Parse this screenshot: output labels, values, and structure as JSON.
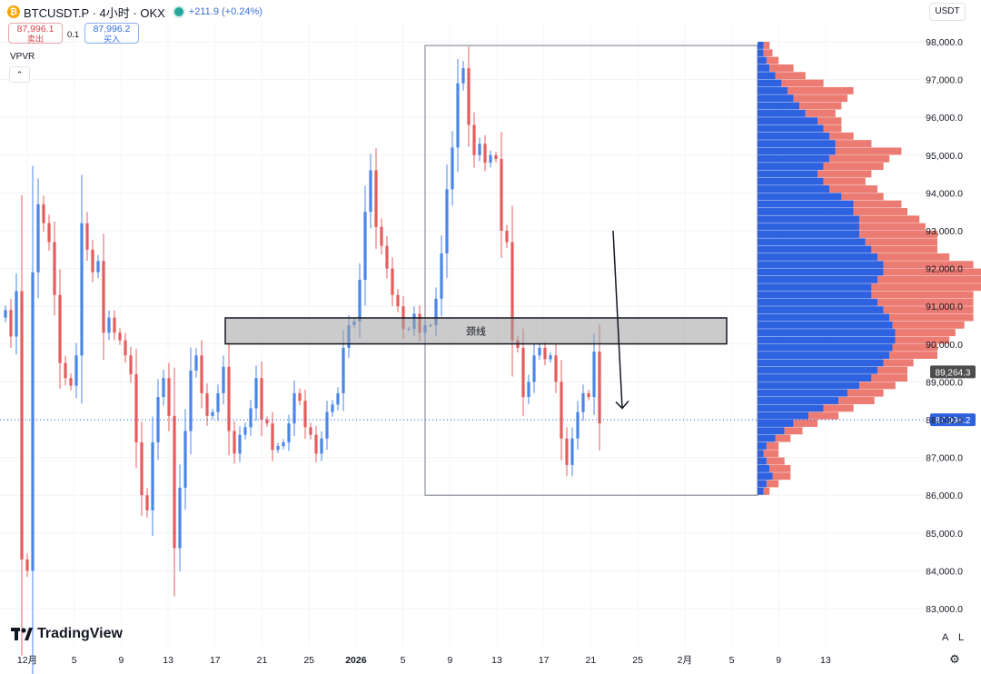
{
  "header": {
    "coin_glyph": "₿",
    "title": "BTCUSDT.P · 4小时 · OKX",
    "change": "+211.9 (+0.24%)",
    "status_color": "#26a69a"
  },
  "trade": {
    "sell_price": "87,996.1",
    "sell_label": "卖出",
    "qty": "0.1",
    "buy_price": "87,996.2",
    "buy_label": "买入"
  },
  "indicator": {
    "name": "VPVR",
    "collapse_glyph": "⌃"
  },
  "currency": "USDT",
  "branding": {
    "name": "TradingView"
  },
  "scale_buttons": {
    "auto": "A",
    "log": "L"
  },
  "colors": {
    "up": "#4a86e8",
    "down": "#e55c5c",
    "vp_up": "#2f62e0",
    "vp_down": "#ec7b73",
    "price_tag": "#2f62e0",
    "tag_grey": "#4d4d4d"
  },
  "chart_data": {
    "type": "candlestick",
    "timeframe": "4h",
    "ylim": [
      82500,
      98800
    ],
    "y_ticks": [
      98000,
      97000,
      96000,
      95000,
      94000,
      93000,
      92000,
      91000,
      90000,
      89000,
      88000,
      87000,
      86000,
      85000,
      84000,
      83000
    ],
    "y_tick_labels": [
      "98,000.0",
      "97,000.0",
      "96,000.0",
      "95,000.0",
      "94,000.0",
      "93,000.0",
      "92,000.0",
      "91,000.0",
      "90,000.0",
      "89,000.0",
      "88,000.0",
      "87,000.0",
      "86,000.0",
      "85,000.0",
      "84,000.0",
      "83,000.0"
    ],
    "x_ticks": [
      {
        "label": "12月",
        "bold": false
      },
      {
        "label": "5",
        "bold": false
      },
      {
        "label": "9",
        "bold": false
      },
      {
        "label": "13",
        "bold": false
      },
      {
        "label": "17",
        "bold": false
      },
      {
        "label": "21",
        "bold": false
      },
      {
        "label": "25",
        "bold": false
      },
      {
        "label": "2026",
        "bold": true
      },
      {
        "label": "5",
        "bold": false
      },
      {
        "label": "9",
        "bold": false
      },
      {
        "label": "13",
        "bold": false
      },
      {
        "label": "17",
        "bold": false
      },
      {
        "label": "21",
        "bold": false
      },
      {
        "label": "25",
        "bold": false
      },
      {
        "label": "2月",
        "bold": false
      },
      {
        "label": "5",
        "bold": false
      },
      {
        "label": "9",
        "bold": false
      },
      {
        "label": "13",
        "bold": false
      }
    ],
    "last_price": 87996.2,
    "last_price_label": "87,996.2",
    "marker_price": 89264.3,
    "marker_price_label": "89,264.3",
    "closes": [
      90900,
      90200,
      91400,
      84300,
      84000,
      91900,
      93700,
      93200,
      92700,
      91300,
      89500,
      89100,
      88900,
      89700,
      93200,
      92500,
      91900,
      92200,
      90300,
      90700,
      90300,
      90100,
      89700,
      89200,
      87400,
      86000,
      85600,
      87400,
      88600,
      89100,
      88100,
      84600,
      86200,
      87700,
      89300,
      89700,
      88700,
      88100,
      88200,
      88700,
      89400,
      87700,
      87100,
      87600,
      87800,
      88300,
      89100,
      88000,
      87900,
      87200,
      87300,
      87400,
      87900,
      88700,
      88500,
      87800,
      87600,
      87100,
      87500,
      88200,
      88400,
      88700,
      89900,
      90500,
      90600,
      91700,
      93500,
      94600,
      93100,
      92600,
      92000,
      91300,
      91000,
      90400,
      90400,
      90800,
      90300,
      90500,
      90500,
      91200,
      92400,
      94100,
      95200,
      96900,
      97300,
      95800,
      95000,
      95300,
      94800,
      95000,
      94900,
      93000,
      92700,
      90100,
      89900,
      88600,
      89000,
      89700,
      89900,
      89600,
      89700,
      89000,
      87500,
      86800,
      87500,
      88200,
      88700,
      88600,
      89800,
      87900
    ],
    "neckline": {
      "label": "颈线",
      "price_low": 90150,
      "price_high": 90500,
      "x_start_bar": 38,
      "x_end_bar": 131
    },
    "range_box": {
      "price_high": 97900,
      "price_low": 86000,
      "x_start_bar": 77,
      "x_end_bar": 138
    },
    "arrow": {
      "from_price": 93000,
      "to_price": 88300
    },
    "volume_profile": {
      "price_start": 86000,
      "bin_size": 200,
      "up": [
        2,
        3,
        5,
        4,
        3,
        2,
        3,
        6,
        9,
        12,
        17,
        22,
        27,
        30,
        34,
        38,
        40,
        42,
        44,
        45,
        46,
        46,
        45,
        44,
        42,
        40,
        38,
        38,
        40,
        42,
        42,
        40,
        38,
        36,
        34,
        34,
        34,
        32,
        32,
        28,
        24,
        22,
        20,
        22,
        24,
        26,
        26,
        24,
        22,
        20,
        16,
        14,
        12,
        10,
        8,
        6,
        4,
        3,
        2,
        2
      ],
      "down": [
        2,
        4,
        6,
        7,
        6,
        5,
        4,
        5,
        6,
        8,
        10,
        10,
        12,
        12,
        12,
        12,
        10,
        10,
        16,
        15,
        18,
        20,
        24,
        28,
        30,
        32,
        34,
        38,
        36,
        34,
        30,
        24,
        22,
        24,
        26,
        22,
        20,
        18,
        16,
        14,
        16,
        14,
        18,
        20,
        20,
        22,
        12,
        8,
        6,
        8,
        10,
        14,
        18,
        22,
        14,
        10,
        8,
        4,
        3,
        2
      ]
    }
  }
}
